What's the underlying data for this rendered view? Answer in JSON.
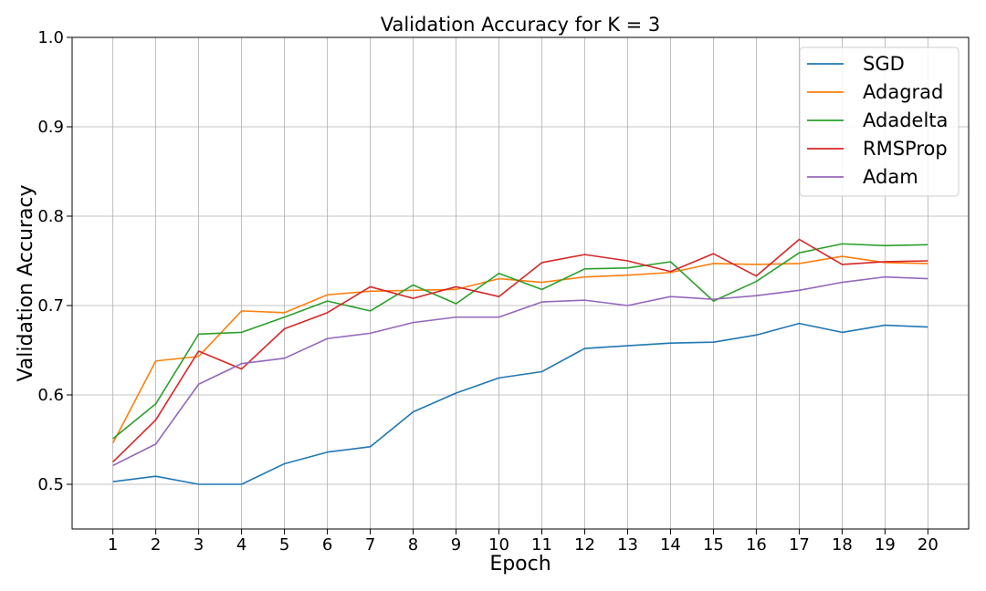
{
  "chart_data": {
    "type": "line",
    "title": "Validation Accuracy for K = 3",
    "xlabel": "Epoch",
    "ylabel": "Validation Accuracy",
    "x": [
      1,
      2,
      3,
      4,
      5,
      6,
      7,
      8,
      9,
      10,
      11,
      12,
      13,
      14,
      15,
      16,
      17,
      18,
      19,
      20
    ],
    "xlim": [
      0.05,
      20.95
    ],
    "ylim": [
      0.45,
      1.0
    ],
    "yticks": [
      0.5,
      0.6,
      0.7,
      0.8,
      0.9,
      1.0
    ],
    "ytick_labels": [
      "0.5",
      "0.6",
      "0.7",
      "0.8",
      "0.9",
      "1.0"
    ],
    "grid": true,
    "legend_position": "top-right",
    "series": [
      {
        "name": "SGD",
        "color": "#1f77b4",
        "values": [
          0.503,
          0.509,
          0.5,
          0.5,
          0.523,
          0.536,
          0.542,
          0.581,
          0.602,
          0.619,
          0.626,
          0.652,
          0.655,
          0.658,
          0.659,
          0.667,
          0.68,
          0.67,
          0.678,
          0.676
        ]
      },
      {
        "name": "Adagrad",
        "color": "#ff7f0e",
        "values": [
          0.546,
          0.638,
          0.643,
          0.694,
          0.692,
          0.712,
          0.716,
          0.717,
          0.718,
          0.73,
          0.726,
          0.732,
          0.734,
          0.737,
          0.747,
          0.746,
          0.747,
          0.755,
          0.748,
          0.747
        ]
      },
      {
        "name": "Adadelta",
        "color": "#2ca02c",
        "values": [
          0.551,
          0.59,
          0.668,
          0.67,
          0.687,
          0.705,
          0.694,
          0.723,
          0.702,
          0.736,
          0.718,
          0.741,
          0.742,
          0.749,
          0.705,
          0.727,
          0.759,
          0.769,
          0.767,
          0.768
        ]
      },
      {
        "name": "RMSProp",
        "color": "#d62728",
        "values": [
          0.525,
          0.572,
          0.649,
          0.629,
          0.674,
          0.692,
          0.721,
          0.708,
          0.721,
          0.71,
          0.748,
          0.757,
          0.75,
          0.738,
          0.758,
          0.733,
          0.774,
          0.746,
          0.749,
          0.75
        ]
      },
      {
        "name": "Adam",
        "color": "#9467bd",
        "values": [
          0.521,
          0.545,
          0.612,
          0.635,
          0.641,
          0.663,
          0.669,
          0.681,
          0.687,
          0.687,
          0.704,
          0.706,
          0.7,
          0.71,
          0.707,
          0.711,
          0.717,
          0.726,
          0.732,
          0.73
        ]
      }
    ]
  }
}
